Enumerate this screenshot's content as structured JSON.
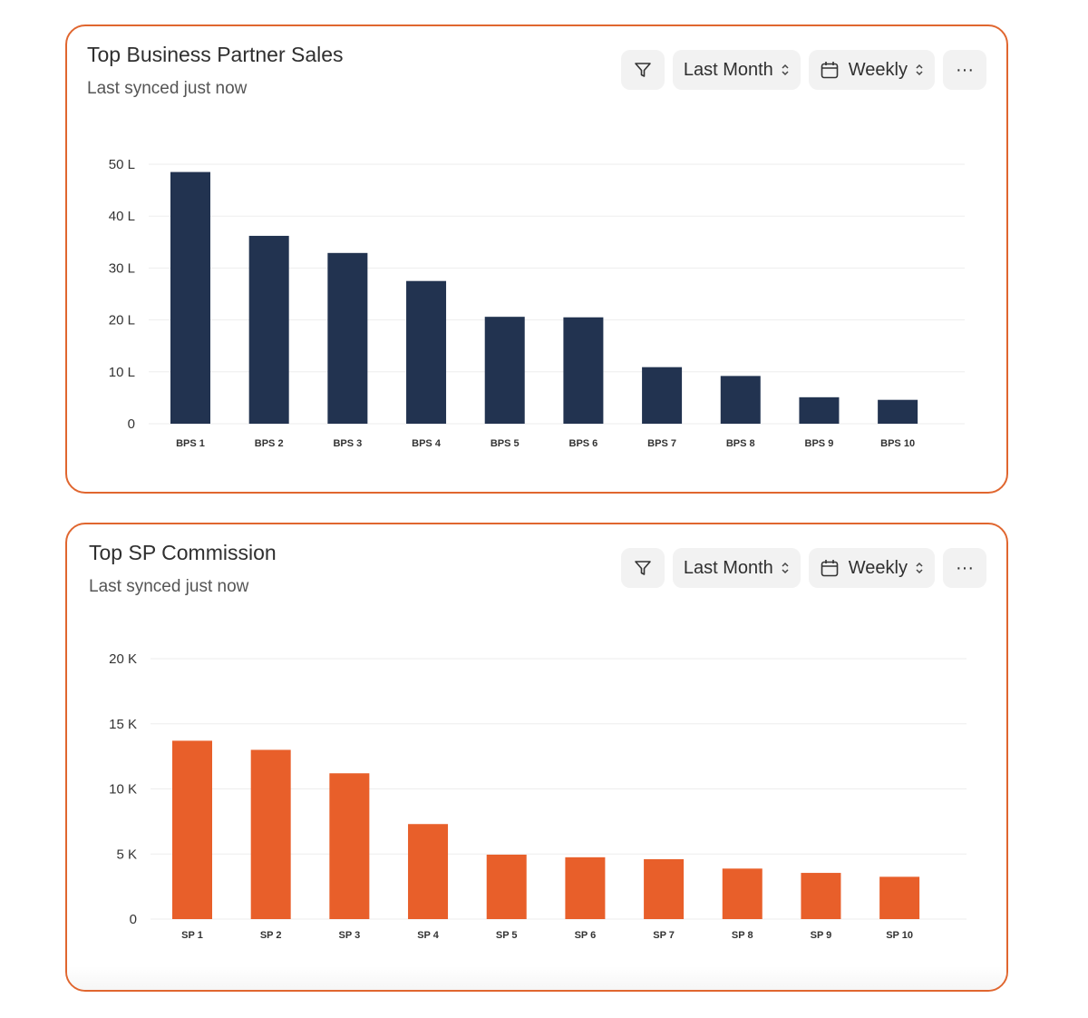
{
  "colors": {
    "accent": "#e0662f",
    "navy": "#223350",
    "orange": "#e85f2a"
  },
  "controls": {
    "period": "Last Month",
    "interval": "Weekly",
    "filter_icon": "filter-icon",
    "calendar_icon": "calendar-icon",
    "more_icon": "more-icon",
    "more_glyph": "···",
    "chevron_glyph": "⌃⌄"
  },
  "cards": [
    {
      "title": "Top Business Partner Sales",
      "subtitle": "Last synced just now"
    },
    {
      "title": "Top SP Commission",
      "subtitle": "Last synced just now"
    }
  ],
  "chart_data": [
    {
      "type": "bar",
      "title": "Top Business Partner Sales",
      "categories": [
        "BPS 1",
        "BPS 2",
        "BPS 3",
        "BPS 4",
        "BPS 5",
        "BPS 6",
        "BPS 7",
        "BPS 8",
        "BPS 9",
        "BPS 10"
      ],
      "values": [
        48.5,
        36.2,
        32.9,
        27.5,
        20.6,
        20.5,
        10.9,
        9.2,
        5.1,
        4.6
      ],
      "ylim": [
        0,
        50
      ],
      "yticks": [
        0,
        10,
        20,
        30,
        40,
        50
      ],
      "ytick_labels": [
        "0",
        "10 L",
        "20 L",
        "30 L",
        "40 L",
        "50 L"
      ],
      "xlabel": "",
      "ylabel": "",
      "color": "#223350",
      "grid": true
    },
    {
      "type": "bar",
      "title": "Top SP Commission",
      "categories": [
        "SP 1",
        "SP 2",
        "SP 3",
        "SP 4",
        "SP 5",
        "SP 6",
        "SP 7",
        "SP 8",
        "SP 9",
        "SP 10"
      ],
      "values": [
        13700,
        13000,
        11200,
        7300,
        4950,
        4750,
        4600,
        3880,
        3550,
        3250
      ],
      "ylim": [
        0,
        20000
      ],
      "yticks": [
        0,
        5000,
        10000,
        15000,
        20000
      ],
      "ytick_labels": [
        "0",
        "5 K",
        "10 K",
        "15 K",
        "20 K"
      ],
      "xlabel": "",
      "ylabel": "",
      "color": "#e85f2a",
      "grid": true
    }
  ]
}
